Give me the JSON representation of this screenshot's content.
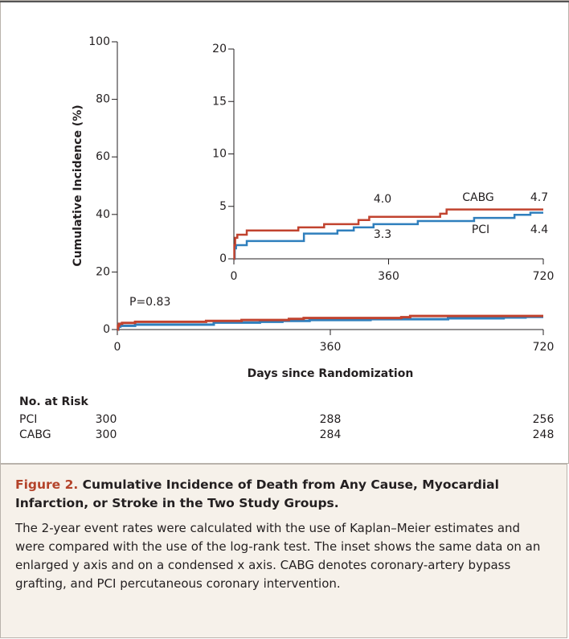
{
  "chart_data": [
    {
      "type": "line",
      "step": true,
      "y_label": "Cumulative Incidence (%)",
      "x_label": "Days since Randomization",
      "annotation": "P=0.83",
      "xlim": [
        0,
        720
      ],
      "xticks": [
        0,
        360,
        720
      ],
      "ylim": [
        0,
        100
      ],
      "yticks": [
        0,
        20,
        40,
        60,
        80,
        100
      ],
      "series": [
        {
          "name": "CABG",
          "color": "#c1432f",
          "x": [
            0,
            1,
            3,
            8,
            30,
            150,
            210,
            290,
            315,
            480,
            495,
            720
          ],
          "values": [
            0,
            1.3,
            2.0,
            2.3,
            2.7,
            3.0,
            3.3,
            3.7,
            4.0,
            4.3,
            4.7,
            4.7
          ]
        },
        {
          "name": "PCI",
          "color": "#2f7fbd",
          "x": [
            0,
            2,
            5,
            30,
            163,
            241,
            279,
            325,
            428,
            559,
            653,
            690,
            720
          ],
          "values": [
            0,
            1.0,
            1.3,
            1.7,
            2.4,
            2.7,
            3.0,
            3.3,
            3.6,
            3.9,
            4.2,
            4.4,
            4.4
          ]
        }
      ]
    },
    {
      "type": "line",
      "step": true,
      "xlim": [
        0,
        720
      ],
      "xticks": [
        0,
        360,
        720
      ],
      "ylim": [
        0,
        20
      ],
      "yticks": [
        0,
        5,
        10,
        15,
        20
      ],
      "series": [
        {
          "name": "CABG",
          "color": "#c1432f",
          "x": [
            0,
            1,
            3,
            8,
            30,
            150,
            210,
            290,
            315,
            480,
            495,
            720
          ],
          "values": [
            0,
            1.3,
            2.0,
            2.3,
            2.7,
            3.0,
            3.3,
            3.7,
            4.0,
            4.3,
            4.7,
            4.7
          ]
        },
        {
          "name": "PCI",
          "color": "#2f7fbd",
          "x": [
            0,
            2,
            5,
            30,
            163,
            241,
            279,
            325,
            428,
            559,
            653,
            690,
            720
          ],
          "values": [
            0,
            1.0,
            1.3,
            1.7,
            2.4,
            2.7,
            3.0,
            3.3,
            3.6,
            3.9,
            4.2,
            4.4,
            4.4
          ]
        }
      ],
      "annotations": [
        {
          "value": 4.0,
          "label": "4.0"
        },
        {
          "value": 3.3,
          "label": "3.3"
        },
        {
          "value": 4.7,
          "label": "4.7"
        },
        {
          "value": 4.4,
          "label": "4.4"
        }
      ]
    }
  ],
  "risk_table": {
    "title": "No. at Risk",
    "rows": [
      [
        "PCI",
        "300",
        "288",
        "256"
      ],
      [
        "CABG",
        "300",
        "284",
        "248"
      ]
    ]
  },
  "caption": {
    "label": "Figure 2.",
    "title": "Cumulative Incidence of Death from Any Cause, Myocardial Infarction, or Stroke in the Two Study Groups.",
    "body": "The 2-year event rates were calculated with the use of Kaplan–Meier estimates and were compared with the use of the log-rank test. The inset shows the same data on an enlarged y axis and on a condensed x axis. CABG denotes coronary-artery bypass grafting, and PCI percutaneous coronary intervention."
  }
}
